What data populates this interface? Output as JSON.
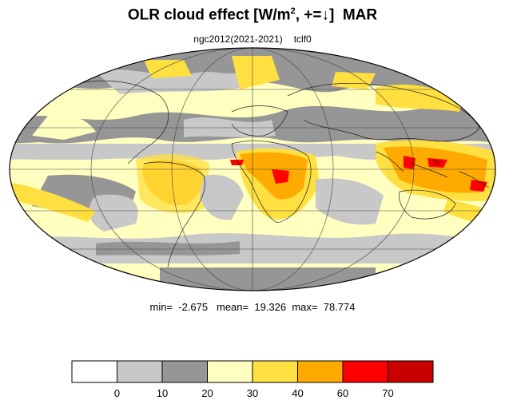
{
  "title": {
    "main": "OLR cloud effect [W/m",
    "superscript": "2",
    "suffix": ", +=",
    "arrow": "↓",
    "close": "]",
    "month": "MAR"
  },
  "subtitle": {
    "experiment": "ngc2012(2021-2021)",
    "variable": "tclf0"
  },
  "stats": {
    "min_label": "min=",
    "min": "-2.675",
    "mean_label": "mean=",
    "mean": "19.326",
    "max_label": "max=",
    "max": "78.774"
  },
  "colorbar": {
    "levels": [
      "0",
      "10",
      "20",
      "30",
      "40",
      "60",
      "70"
    ],
    "colors": [
      "#ffffff",
      "#c8c8c8",
      "#969696",
      "#ffffc0",
      "#ffe040",
      "#ffaa00",
      "#ff0000",
      "#c80000"
    ]
  },
  "map": {
    "projection": "mollweide",
    "ocean_base_color": "#ffffc0"
  }
}
